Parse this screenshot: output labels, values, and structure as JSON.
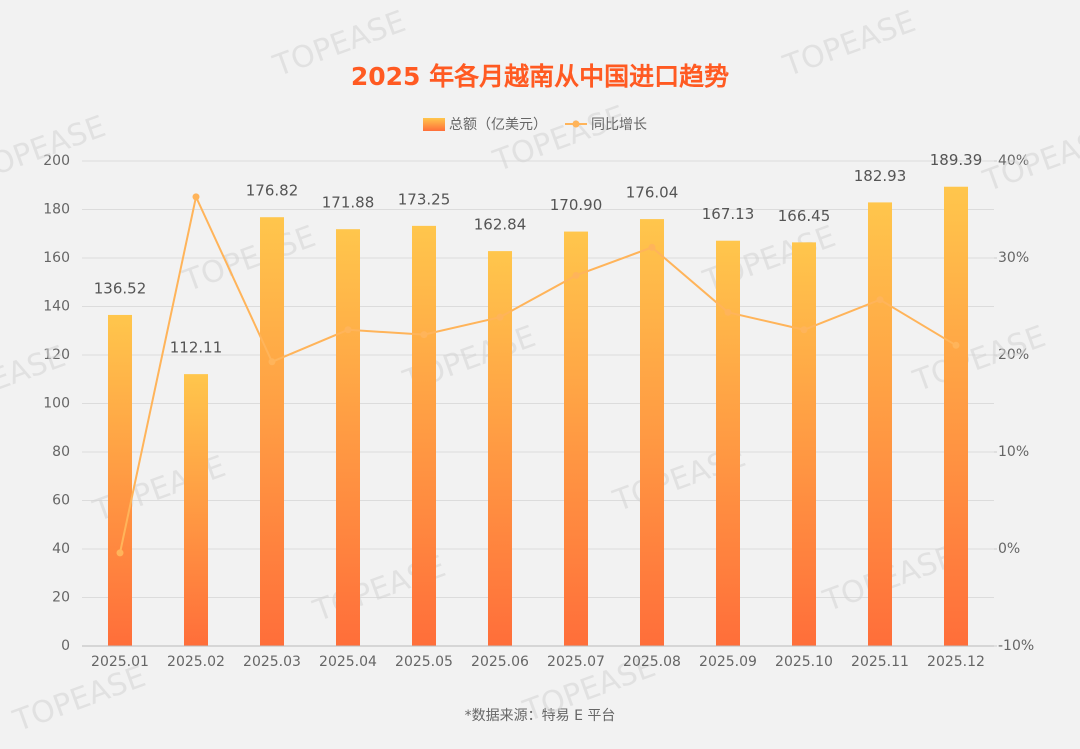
{
  "chart_data": {
    "type": "bar-line",
    "title": "2025 年各月越南从中国进口趋势",
    "source": "*数据来源：特易 E 平台",
    "watermark": "TOPEASE",
    "categories": [
      "2025.01",
      "2025.02",
      "2025.03",
      "2025.04",
      "2025.05",
      "2025.06",
      "2025.07",
      "2025.08",
      "2025.09",
      "2025.10",
      "2025.11",
      "2025.12"
    ],
    "series": [
      {
        "name": "总额（亿美元）",
        "type": "bar",
        "color": "#ff8a3d",
        "gradient": [
          "#ffc64c",
          "#ff6e3a"
        ],
        "values": [
          136.52,
          112.11,
          176.82,
          171.88,
          173.25,
          162.84,
          170.9,
          176.04,
          167.13,
          166.45,
          182.93,
          189.39
        ],
        "value_labels": [
          "136.52",
          "112.11",
          "176.82",
          "171.88",
          "173.25",
          "162.84",
          "170.90",
          "176.04",
          "167.13",
          "166.45",
          "182.93",
          "189.39"
        ]
      },
      {
        "name": "同比增长",
        "type": "line",
        "axis": "y2",
        "color": "#ffb45a",
        "values": [
          -0.4,
          36.3,
          19.3,
          22.6,
          22.1,
          23.9,
          28.2,
          31.1,
          24.4,
          22.6,
          25.7,
          21.0
        ]
      }
    ],
    "ylim": [
      0,
      200
    ],
    "yticks": [
      0,
      20,
      40,
      60,
      80,
      100,
      120,
      140,
      160,
      180,
      200
    ],
    "y2lim": [
      -10,
      40
    ],
    "y2ticks": [
      {
        "value": -10,
        "label": "-10%"
      },
      {
        "value": 0,
        "label": "0%"
      },
      {
        "value": 10,
        "label": "10%"
      },
      {
        "value": 20,
        "label": "20%"
      },
      {
        "value": 30,
        "label": "30%"
      },
      {
        "value": 40,
        "label": "40%"
      }
    ],
    "grid": true,
    "legend": "top"
  }
}
